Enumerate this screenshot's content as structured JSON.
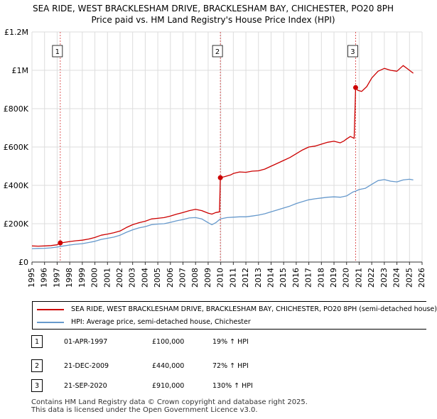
{
  "title_line1": "SEA RIDE, WEST BRACKLESHAM DRIVE, BRACKLESHAM BAY, CHICHESTER, PO20 8PH",
  "title_line2": "Price paid vs. HM Land Registry's House Price Index (HPI)",
  "legend": {
    "series1_label": "SEA RIDE, WEST BRACKLESHAM DRIVE, BRACKLESHAM BAY, CHICHESTER, PO20 8PH (semi-detached house)",
    "series2_label": "HPI: Average price, semi-detached house, Chichester"
  },
  "sales": [
    {
      "num": "1",
      "date": "01-APR-1997",
      "price": "£100,000",
      "hpi": "19% ↑ HPI"
    },
    {
      "num": "2",
      "date": "21-DEC-2009",
      "price": "£440,000",
      "hpi": "72% ↑ HPI"
    },
    {
      "num": "3",
      "date": "21-SEP-2020",
      "price": "£910,000",
      "hpi": "130% ↑ HPI"
    }
  ],
  "footer_line1": "Contains HM Land Registry data © Crown copyright and database right 2025.",
  "footer_line2": "This data is licensed under the Open Government Licence v3.0.",
  "colors": {
    "price": "#cc0000",
    "hpi": "#6699cc",
    "grid": "#dddddd",
    "marker": "#cc0000"
  },
  "chart_data": {
    "type": "line",
    "title": "SEA RIDE, WEST BRACKLESHAM DRIVE, BRACKLESHAM BAY, CHICHESTER, PO20 8PH — Price paid vs. HM Land Registry's House Price Index (HPI)",
    "xlabel": "",
    "ylabel": "",
    "xlim": [
      1995,
      2026
    ],
    "ylim": [
      0,
      1200000
    ],
    "x_ticks": [
      "1995",
      "1996",
      "1997",
      "1998",
      "1999",
      "2000",
      "2001",
      "2002",
      "2003",
      "2004",
      "2005",
      "2006",
      "2007",
      "2008",
      "2009",
      "2010",
      "2011",
      "2012",
      "2013",
      "2014",
      "2015",
      "2016",
      "2017",
      "2018",
      "2019",
      "2020",
      "2021",
      "2022",
      "2023",
      "2024",
      "2025",
      "2026"
    ],
    "y_ticks": [
      {
        "value": 0,
        "label": "£0"
      },
      {
        "value": 200000,
        "label": "£200K"
      },
      {
        "value": 400000,
        "label": "£400K"
      },
      {
        "value": 600000,
        "label": "£600K"
      },
      {
        "value": 800000,
        "label": "£800K"
      },
      {
        "value": 1000000,
        "label": "£1M"
      },
      {
        "value": 1200000,
        "label": "£1.2M"
      }
    ],
    "grid": true,
    "series": [
      {
        "name": "SEA RIDE, WEST BRACKLESHAM DRIVE, BRACKLESHAM BAY, CHICHESTER, PO20 8PH (semi-detached house)",
        "points": [
          [
            1995.0,
            84000
          ],
          [
            1995.5,
            83000
          ],
          [
            1996.0,
            84000
          ],
          [
            1996.5,
            86000
          ],
          [
            1997.0,
            90000
          ],
          [
            1997.25,
            100000
          ],
          [
            1997.5,
            102000
          ],
          [
            1998.0,
            107000
          ],
          [
            1998.5,
            111000
          ],
          [
            1999.0,
            114000
          ],
          [
            1999.5,
            120000
          ],
          [
            2000.0,
            128000
          ],
          [
            2000.5,
            140000
          ],
          [
            2001.0,
            146000
          ],
          [
            2001.5,
            153000
          ],
          [
            2002.0,
            162000
          ],
          [
            2002.5,
            180000
          ],
          [
            2003.0,
            195000
          ],
          [
            2003.5,
            205000
          ],
          [
            2004.0,
            213000
          ],
          [
            2004.5,
            225000
          ],
          [
            2005.0,
            228000
          ],
          [
            2005.5,
            232000
          ],
          [
            2006.0,
            240000
          ],
          [
            2006.5,
            250000
          ],
          [
            2007.0,
            258000
          ],
          [
            2007.5,
            268000
          ],
          [
            2008.0,
            275000
          ],
          [
            2008.5,
            268000
          ],
          [
            2009.0,
            255000
          ],
          [
            2009.3,
            250000
          ],
          [
            2009.6,
            258000
          ],
          [
            2009.9,
            262000
          ],
          [
            2009.97,
            440000
          ],
          [
            2010.3,
            445000
          ],
          [
            2010.8,
            455000
          ],
          [
            2011.0,
            462000
          ],
          [
            2011.5,
            470000
          ],
          [
            2012.0,
            468000
          ],
          [
            2012.5,
            474000
          ],
          [
            2013.0,
            476000
          ],
          [
            2013.5,
            485000
          ],
          [
            2014.0,
            500000
          ],
          [
            2014.5,
            515000
          ],
          [
            2015.0,
            530000
          ],
          [
            2015.5,
            545000
          ],
          [
            2016.0,
            565000
          ],
          [
            2016.5,
            585000
          ],
          [
            2017.0,
            600000
          ],
          [
            2017.5,
            605000
          ],
          [
            2018.0,
            615000
          ],
          [
            2018.5,
            625000
          ],
          [
            2019.0,
            630000
          ],
          [
            2019.5,
            622000
          ],
          [
            2019.8,
            632000
          ],
          [
            2020.0,
            642000
          ],
          [
            2020.3,
            655000
          ],
          [
            2020.6,
            645000
          ],
          [
            2020.72,
            910000
          ],
          [
            2020.9,
            895000
          ],
          [
            2021.2,
            890000
          ],
          [
            2021.6,
            915000
          ],
          [
            2022.0,
            960000
          ],
          [
            2022.5,
            995000
          ],
          [
            2023.0,
            1010000
          ],
          [
            2023.5,
            1000000
          ],
          [
            2024.0,
            995000
          ],
          [
            2024.5,
            1025000
          ],
          [
            2025.0,
            1000000
          ],
          [
            2025.3,
            985000
          ]
        ]
      },
      {
        "name": "HPI: Average price, semi-detached house, Chichester",
        "points": [
          [
            1995.0,
            70000
          ],
          [
            1995.5,
            71000
          ],
          [
            1996.0,
            72000
          ],
          [
            1996.5,
            74000
          ],
          [
            1997.0,
            78000
          ],
          [
            1997.5,
            84000
          ],
          [
            1998.0,
            89000
          ],
          [
            1998.5,
            93000
          ],
          [
            1999.0,
            96000
          ],
          [
            1999.5,
            102000
          ],
          [
            2000.0,
            108000
          ],
          [
            2000.5,
            118000
          ],
          [
            2001.0,
            124000
          ],
          [
            2001.5,
            130000
          ],
          [
            2002.0,
            140000
          ],
          [
            2002.5,
            155000
          ],
          [
            2003.0,
            168000
          ],
          [
            2003.5,
            178000
          ],
          [
            2004.0,
            185000
          ],
          [
            2004.5,
            195000
          ],
          [
            2005.0,
            198000
          ],
          [
            2005.5,
            200000
          ],
          [
            2006.0,
            207000
          ],
          [
            2006.5,
            215000
          ],
          [
            2007.0,
            222000
          ],
          [
            2007.5,
            230000
          ],
          [
            2008.0,
            232000
          ],
          [
            2008.5,
            225000
          ],
          [
            2009.0,
            205000
          ],
          [
            2009.3,
            195000
          ],
          [
            2009.6,
            205000
          ],
          [
            2009.97,
            225000
          ],
          [
            2010.5,
            232000
          ],
          [
            2011.0,
            234000
          ],
          [
            2011.5,
            236000
          ],
          [
            2012.0,
            236000
          ],
          [
            2012.5,
            240000
          ],
          [
            2013.0,
            245000
          ],
          [
            2013.5,
            252000
          ],
          [
            2014.0,
            262000
          ],
          [
            2014.5,
            272000
          ],
          [
            2015.0,
            282000
          ],
          [
            2015.5,
            292000
          ],
          [
            2016.0,
            305000
          ],
          [
            2016.5,
            315000
          ],
          [
            2017.0,
            325000
          ],
          [
            2017.5,
            330000
          ],
          [
            2018.0,
            334000
          ],
          [
            2018.5,
            338000
          ],
          [
            2019.0,
            340000
          ],
          [
            2019.5,
            338000
          ],
          [
            2020.0,
            345000
          ],
          [
            2020.5,
            365000
          ],
          [
            2020.72,
            370000
          ],
          [
            2021.0,
            378000
          ],
          [
            2021.5,
            385000
          ],
          [
            2022.0,
            405000
          ],
          [
            2022.5,
            425000
          ],
          [
            2023.0,
            430000
          ],
          [
            2023.5,
            422000
          ],
          [
            2024.0,
            418000
          ],
          [
            2024.5,
            428000
          ],
          [
            2025.0,
            432000
          ],
          [
            2025.3,
            428000
          ]
        ]
      }
    ],
    "sale_markers": [
      {
        "label": "1",
        "x": 1997.25,
        "y": 100000
      },
      {
        "label": "2",
        "x": 2009.97,
        "y": 440000
      },
      {
        "label": "3",
        "x": 2020.72,
        "y": 910000
      }
    ]
  }
}
